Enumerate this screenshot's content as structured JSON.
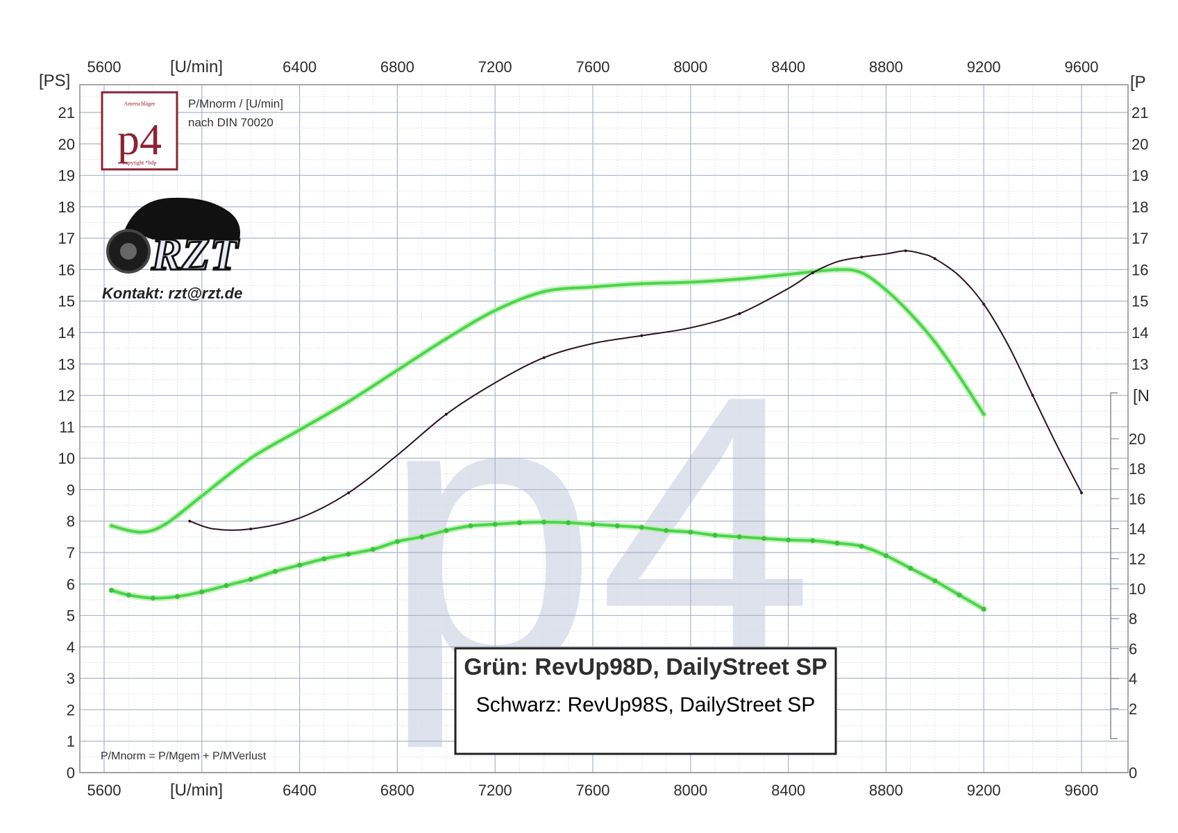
{
  "chart_data": {
    "type": "line",
    "title": "",
    "subtitle_lines": [
      "P/Mnorm / [U/min]",
      "nach DIN 70020"
    ],
    "x_unit_label": "[U/min]",
    "y_left_label": "[PS]",
    "y_right_label_top": "[P",
    "y_right_label_lower": "[N",
    "x_ticks": [
      5600,
      6400,
      6800,
      7200,
      7600,
      8000,
      8400,
      8800,
      9200,
      9600
    ],
    "xlim": [
      5600,
      9800
    ],
    "y_left_ticks": [
      0,
      1,
      2,
      3,
      4,
      5,
      6,
      7,
      8,
      9,
      10,
      11,
      12,
      13,
      14,
      15,
      16,
      17,
      18,
      19,
      20,
      21
    ],
    "ylim": [
      0,
      22
    ],
    "y_right_top_ticks": [
      13,
      14,
      15,
      16,
      17,
      18,
      19,
      20,
      21
    ],
    "y_right_lower_ticks": [
      2,
      4,
      6,
      8,
      10,
      12,
      14,
      16,
      18,
      20
    ],
    "y_right_lower_bottom_tick": "0",
    "grid": true,
    "series": [
      {
        "name": "RevUp98D, DailyStreet SP",
        "kind": "power",
        "color": "#4cd44c",
        "x": [
          5630,
          5750,
          5850,
          6000,
          6200,
          6400,
          6600,
          6800,
          7000,
          7200,
          7400,
          7600,
          7800,
          8000,
          8200,
          8400,
          8600,
          8700,
          8800,
          8900,
          9000,
          9100,
          9200
        ],
        "y": [
          7.85,
          7.65,
          7.9,
          8.8,
          10.0,
          10.9,
          11.8,
          12.8,
          13.8,
          14.7,
          15.3,
          15.45,
          15.55,
          15.6,
          15.7,
          15.85,
          16.0,
          15.9,
          15.35,
          14.6,
          13.7,
          12.6,
          11.4
        ]
      },
      {
        "name": "RevUp98S, DailyStreet SP",
        "kind": "power",
        "color": "#2a1420",
        "x": [
          5950,
          6050,
          6200,
          6400,
          6600,
          6800,
          7000,
          7200,
          7400,
          7600,
          7800,
          8000,
          8200,
          8400,
          8500,
          8600,
          8700,
          8800,
          8880,
          8950,
          9000,
          9100,
          9200,
          9300,
          9400,
          9500,
          9600
        ],
        "y": [
          8.0,
          7.75,
          7.75,
          8.1,
          8.9,
          10.1,
          11.4,
          12.4,
          13.2,
          13.65,
          13.9,
          14.15,
          14.6,
          15.4,
          15.9,
          16.25,
          16.4,
          16.5,
          16.6,
          16.5,
          16.35,
          15.8,
          14.9,
          13.6,
          12.0,
          10.4,
          8.9
        ]
      },
      {
        "name": "RevUp98D, DailyStreet SP",
        "kind": "torque",
        "color": "#4cd44c",
        "x": [
          5630,
          5700,
          5800,
          5900,
          6000,
          6100,
          6200,
          6300,
          6400,
          6500,
          6600,
          6700,
          6800,
          6900,
          7000,
          7100,
          7200,
          7300,
          7400,
          7500,
          7600,
          7700,
          7800,
          7900,
          8000,
          8100,
          8200,
          8300,
          8400,
          8500,
          8600,
          8700,
          8800,
          8900,
          9000,
          9100,
          9200
        ],
        "y": [
          5.8,
          5.65,
          5.55,
          5.6,
          5.75,
          5.95,
          6.15,
          6.4,
          6.6,
          6.8,
          6.95,
          7.1,
          7.35,
          7.5,
          7.7,
          7.85,
          7.9,
          7.95,
          7.97,
          7.95,
          7.9,
          7.85,
          7.8,
          7.7,
          7.65,
          7.55,
          7.5,
          7.45,
          7.4,
          7.38,
          7.3,
          7.2,
          6.9,
          6.5,
          6.1,
          5.65,
          5.2
        ]
      }
    ]
  },
  "logo": {
    "brand": "p4",
    "top_text": "Amerschläger",
    "bottom_text": "copyright *bdp",
    "border_color": "#8b2335"
  },
  "rzt_logo": {
    "text": "RZT"
  },
  "contact": "Kontakt: rzt@rzt.de",
  "formula": "P/Mnorm = P/Mgem + P/MVerlust",
  "legend": {
    "line1": "Grün: RevUp98D, DailyStreet SP",
    "line2": "Schwarz: RevUp98S, DailyStreet SP"
  }
}
